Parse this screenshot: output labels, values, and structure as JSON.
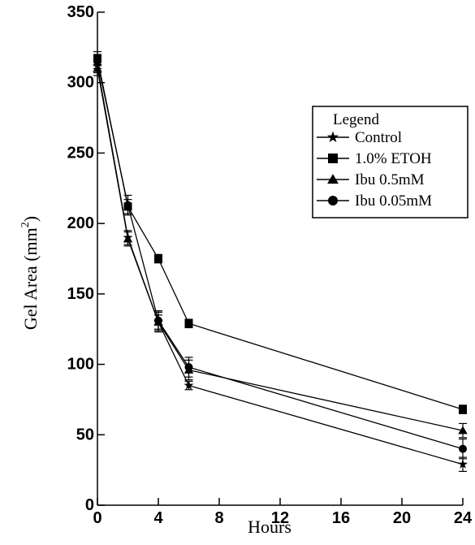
{
  "chart_data": {
    "type": "line",
    "xlabel": "Hours",
    "ylabel": "Gel Area (mm",
    "ylabel_superscript": "2",
    "ylabel_close": ")",
    "xlim": [
      0,
      24
    ],
    "ylim": [
      0,
      350
    ],
    "x_ticks": [
      "0",
      "4",
      "8",
      "12",
      "16",
      "20",
      "24"
    ],
    "x_tick_values": [
      0,
      4,
      8,
      12,
      16,
      20,
      24
    ],
    "y_ticks": [
      "0",
      "50",
      "100",
      "150",
      "200",
      "250",
      "300",
      "350"
    ],
    "y_tick_values": [
      0,
      50,
      100,
      150,
      200,
      250,
      300,
      350
    ],
    "x": [
      0,
      2,
      4,
      6,
      24
    ],
    "grid": false,
    "legend": {
      "title": "Legend",
      "placement": "top-right"
    },
    "series": [
      {
        "name": "Control",
        "marker": "star",
        "values": [
          312,
          190,
          130,
          85,
          29
        ],
        "errors": [
          5,
          5,
          5,
          3,
          5
        ]
      },
      {
        "name": "1.0% ETOH",
        "marker": "square",
        "values": [
          317,
          212,
          175,
          129,
          68
        ],
        "errors": [
          5,
          5,
          3,
          3,
          3
        ]
      },
      {
        "name": "Ibu 0.5mM",
        "marker": "triangle",
        "values": [
          310,
          189,
          130,
          96,
          53
        ],
        "errors": [
          5,
          5,
          7,
          7,
          5
        ]
      },
      {
        "name": "Ibu 0.05mM",
        "marker": "circle",
        "values": [
          315,
          213,
          131,
          98,
          40
        ],
        "errors": [
          5,
          7,
          7,
          7,
          7
        ]
      }
    ]
  }
}
